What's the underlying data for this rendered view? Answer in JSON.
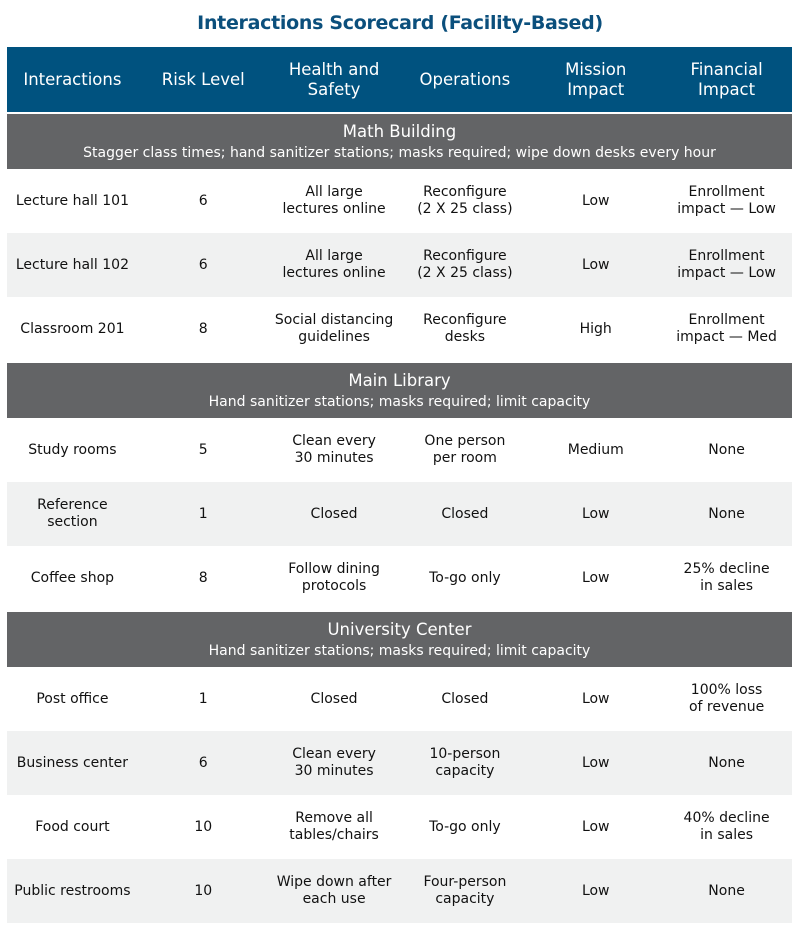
{
  "title": "Interactions Scorecard (Facility-Based)",
  "columns": [
    "Interactions",
    "Risk Level",
    "Health and Safety",
    "Operations",
    "Mission Impact",
    "Financial Impact"
  ],
  "colors": {
    "header": "#00527f",
    "section": "#636466",
    "stripe": "#f0f1f1",
    "title": "#0b4f7c"
  },
  "sections": [
    {
      "name": "Math Building",
      "description": "Stagger class times; hand sanitizer stations; masks required; wipe down desks every hour",
      "rows": [
        [
          "Lecture hall 101",
          "6",
          "All large\nlectures online",
          "Reconfigure\n(2 X 25 class)",
          "Low",
          "Enrollment\nimpact — Low"
        ],
        [
          "Lecture hall 102",
          "6",
          "All large\nlectures online",
          "Reconfigure\n(2 X 25 class)",
          "Low",
          "Enrollment\nimpact — Low"
        ],
        [
          "Classroom 201",
          "8",
          "Social distancing\nguidelines",
          "Reconfigure\ndesks",
          "High",
          "Enrollment\nimpact — Med"
        ]
      ]
    },
    {
      "name": "Main Library",
      "description": "Hand sanitizer stations; masks required; limit capacity",
      "rows": [
        [
          "Study rooms",
          "5",
          "Clean every\n30 minutes",
          "One person\nper room",
          "Medium",
          "None"
        ],
        [
          "Reference section",
          "1",
          "Closed",
          "Closed",
          "Low",
          "None"
        ],
        [
          "Coffee shop",
          "8",
          "Follow dining\nprotocols",
          "To-go only",
          "Low",
          "25% decline\nin sales"
        ]
      ]
    },
    {
      "name": "University Center",
      "description": "Hand sanitizer stations; masks required; limit capacity",
      "rows": [
        [
          "Post office",
          "1",
          "Closed",
          "Closed",
          "Low",
          "100% loss\nof revenue"
        ],
        [
          "Business center",
          "6",
          "Clean every\n30 minutes",
          "10-person\ncapacity",
          "Low",
          "None"
        ],
        [
          "Food court",
          "10",
          "Remove all\ntables/chairs",
          "To-go only",
          "Low",
          "40% decline\nin sales"
        ],
        [
          "Public restrooms",
          "10",
          "Wipe down after\neach use",
          "Four-person\ncapacity",
          "Low",
          "None"
        ]
      ]
    }
  ]
}
